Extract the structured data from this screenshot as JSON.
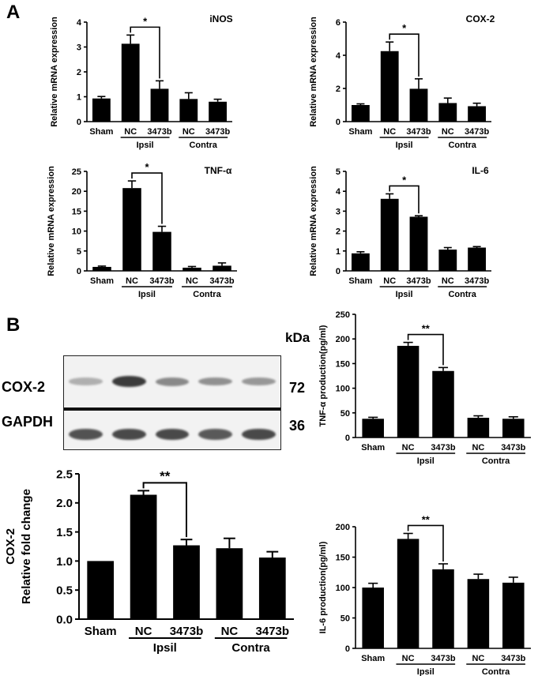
{
  "panels": {
    "a": "A",
    "b": "B"
  },
  "chart_data": [
    {
      "type": "bar",
      "id": "inos",
      "title": "iNOS",
      "ylabel": "Relative mRNA expression",
      "ylim": [
        0,
        4
      ],
      "yticks": [
        "0",
        "1",
        "2",
        "3",
        "4"
      ],
      "categories": [
        "Sham",
        "NC",
        "3473b",
        "NC",
        "3473b"
      ],
      "groups": [
        "Ipsil",
        "Contra"
      ],
      "values": [
        0.93,
        3.13,
        1.32,
        0.91,
        0.8
      ],
      "errors": [
        0.08,
        0.35,
        0.32,
        0.25,
        0.1
      ],
      "significance": "*"
    },
    {
      "type": "bar",
      "id": "cox2",
      "title": "COX-2",
      "ylabel": "Relative mRNA expression",
      "ylim": [
        0,
        6
      ],
      "yticks": [
        "0",
        "2",
        "4",
        "6"
      ],
      "categories": [
        "Sham",
        "NC",
        "3473b",
        "NC",
        "3473b"
      ],
      "groups": [
        "Ipsil",
        "Contra"
      ],
      "values": [
        1.0,
        4.25,
        1.98,
        1.12,
        0.93
      ],
      "errors": [
        0.07,
        0.55,
        0.6,
        0.3,
        0.18
      ],
      "significance": "*"
    },
    {
      "type": "bar",
      "id": "tnfa",
      "title": "TNF-α",
      "ylabel": "Relative mRNA expression",
      "ylim": [
        0,
        25
      ],
      "yticks": [
        "0",
        "5",
        "10",
        "15",
        "20",
        "25"
      ],
      "categories": [
        "Sham",
        "NC",
        "3473b",
        "NC",
        "3473b"
      ],
      "groups": [
        "Ipsil",
        "Contra"
      ],
      "values": [
        1.0,
        20.8,
        9.8,
        0.8,
        1.3
      ],
      "errors": [
        0.2,
        1.8,
        1.4,
        0.3,
        0.7
      ],
      "significance": "*"
    },
    {
      "type": "bar",
      "id": "il6",
      "title": "IL-6",
      "ylabel": "Relative mRNA expression",
      "ylim": [
        0,
        5
      ],
      "yticks": [
        "0",
        "1",
        "2",
        "3",
        "4",
        "5"
      ],
      "categories": [
        "Sham",
        "NC",
        "3473b",
        "NC",
        "3473b"
      ],
      "groups": [
        "Ipsil",
        "Contra"
      ],
      "values": [
        0.88,
        3.62,
        2.72,
        1.07,
        1.17
      ],
      "errors": [
        0.08,
        0.25,
        0.05,
        0.1,
        0.05
      ],
      "significance": "*"
    },
    {
      "type": "bar",
      "id": "tnf_production",
      "title": "",
      "ylabel": "TNF-α production(pg/ml)",
      "ylim": [
        0,
        250
      ],
      "yticks": [
        "0",
        "50",
        "100",
        "150",
        "200",
        "250"
      ],
      "categories": [
        "Sham",
        "NC",
        "3473b",
        "NC",
        "3473b"
      ],
      "groups": [
        "Ipsil",
        "Contra"
      ],
      "values": [
        38,
        186,
        135,
        40,
        38
      ],
      "errors": [
        3,
        7,
        7,
        4,
        4
      ],
      "significance": "**"
    },
    {
      "type": "bar",
      "id": "cox2_fold",
      "title": "",
      "ylabel": "COX-2\nRelative fold change",
      "ylim": [
        0,
        2.5
      ],
      "yticks": [
        "0.0",
        "0.5",
        "1.0",
        "1.5",
        "2.0",
        "2.5"
      ],
      "categories": [
        "Sham",
        "NC",
        "3473b",
        "NC",
        "3473b"
      ],
      "groups": [
        "Ipsil",
        "Contra"
      ],
      "values": [
        1.0,
        2.14,
        1.27,
        1.22,
        1.06
      ],
      "errors": [
        0,
        0.07,
        0.1,
        0.17,
        0.1
      ],
      "significance": "**"
    },
    {
      "type": "bar",
      "id": "il6_production",
      "title": "",
      "ylabel": "IL-6 production(pg/ml)",
      "ylim": [
        0,
        200
      ],
      "yticks": [
        "0",
        "50",
        "100",
        "150",
        "200"
      ],
      "categories": [
        "Sham",
        "NC",
        "3473b",
        "NC",
        "3473b"
      ],
      "groups": [
        "Ipsil",
        "Contra"
      ],
      "values": [
        100,
        180,
        130,
        114,
        108
      ],
      "errors": [
        7,
        9,
        9,
        8,
        9
      ],
      "significance": "**"
    }
  ],
  "blot": {
    "unit": "kDa",
    "rows": [
      {
        "label": "COX-2",
        "size": "72",
        "intensity": [
          0.25,
          1.0,
          0.5,
          0.45,
          0.4
        ]
      },
      {
        "label": "GAPDH",
        "size": "36",
        "intensity": [
          0.85,
          0.9,
          0.9,
          0.8,
          0.9
        ]
      }
    ]
  }
}
